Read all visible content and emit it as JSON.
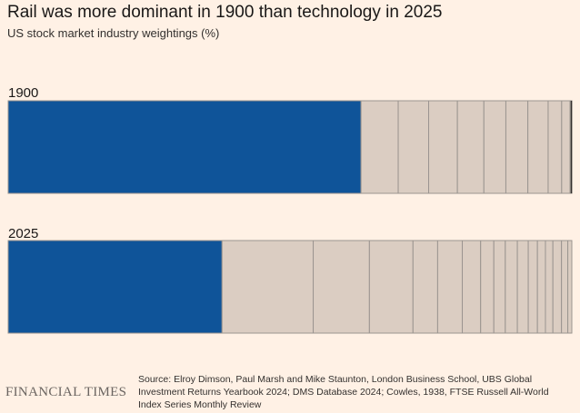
{
  "header": {
    "title": "Rail was more dominant in 1900 than technology in 2025",
    "subtitle": "US stock market industry weightings (%)"
  },
  "colors": {
    "background": "#fff1e5",
    "highlight": "#0f5499",
    "other": "#dbcdc2",
    "segment_border": "#9b9590"
  },
  "chart_data": {
    "type": "bar",
    "subtype": "100% stacked horizontal bar",
    "categories": [
      "1900",
      "2025"
    ],
    "series_values_percent": {
      "1900": [
        62.6,
        6.6,
        5.4,
        5.1,
        4.7,
        3.9,
        3.9,
        3.6,
        2.4,
        1.5,
        0.3
      ],
      "2025": [
        37.3,
        15.9,
        9.8,
        7.6,
        4.3,
        4.3,
        3.2,
        2.3,
        2.0,
        2.1,
        1.9,
        1.6,
        1.4,
        1.3,
        1.5,
        1.1,
        0.7
      ]
    },
    "highlighted_segment": "first segment in each bar",
    "axis": "none",
    "grid": false,
    "legend": "none"
  },
  "footer": {
    "brand": "FINANCIAL TIMES",
    "source": "Source: Elroy Dimson, Paul Marsh and Mike Staunton, London Business School, UBS Global Investment Returns Yearbook 2024; DMS Database 2024; Cowles, 1938, FTSE Russell All-World Index Series Monthly Review"
  }
}
